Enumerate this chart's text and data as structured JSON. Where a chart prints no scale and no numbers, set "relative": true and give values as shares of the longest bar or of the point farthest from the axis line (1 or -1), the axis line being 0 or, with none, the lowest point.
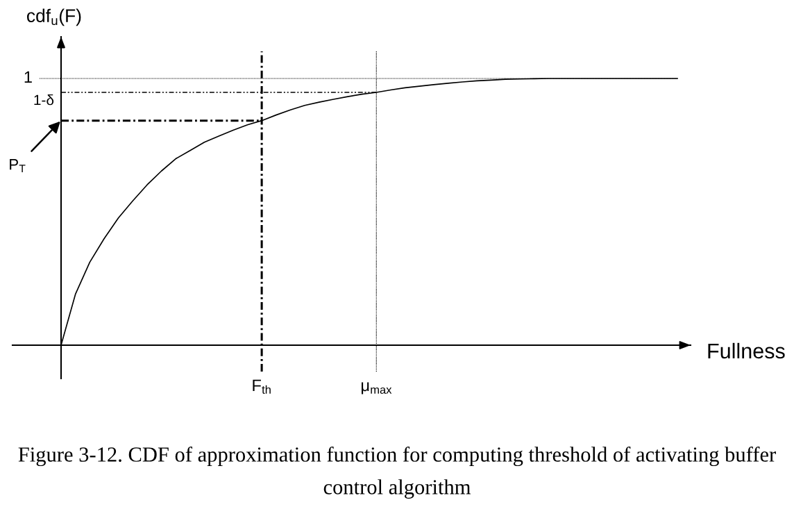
{
  "chart_data": {
    "type": "line",
    "relative": true,
    "tick_labels": "x",
    "xlabel": "Fullness",
    "ylabel": "cdf$_{u}$(F)",
    "categories": [
      null,
      null,
      null,
      null,
      null,
      null,
      null,
      null,
      null,
      null,
      null,
      null,
      null,
      null,
      "F$_{th}$",
      null,
      null,
      null,
      null,
      null,
      null,
      null,
      "μ$_{max}$",
      null,
      null,
      null,
      null,
      null,
      null,
      null,
      null,
      null,
      null,
      null,
      null,
      null,
      null,
      null,
      null,
      null,
      null,
      null,
      null,
      null
    ],
    "values": [
      0,
      0.191,
      0.311,
      0.399,
      0.477,
      0.541,
      0.601,
      0.653,
      0.699,
      0.73,
      0.761,
      0.784,
      0.806,
      0.826,
      0.842,
      0.863,
      0.882,
      0.899,
      0.911,
      0.922,
      0.932,
      0.941,
      0.948,
      0.957,
      0.965,
      0.971,
      0.977,
      0.982,
      0.987,
      0.991,
      0.994,
      0.997,
      0.998,
      0.999,
      1,
      1,
      1,
      1,
      1,
      1,
      1,
      1,
      1,
      1
    ],
    "color": "#000000",
    "ref_lines": [
      {
        "axis": "y",
        "value": 1,
        "label": "1",
        "line_style": "dotted"
      },
      {
        "axis": "y",
        "value": 0.948,
        "label": "1-δ",
        "line_style": "dashdotdot"
      },
      {
        "axis": "y",
        "value": 0.842,
        "label": "P$_{T}$",
        "line_style": "dashdot"
      },
      {
        "axis": "x",
        "value": "F$_{th}$",
        "line_style": "dashdot"
      },
      {
        "axis": "x",
        "value": "μ$_{max}$",
        "line_style": "dotted"
      }
    ],
    "annotations": [
      "Figure 3-12. CDF of approximation function for computing threshold of activating buffer control algorithm"
    ]
  }
}
